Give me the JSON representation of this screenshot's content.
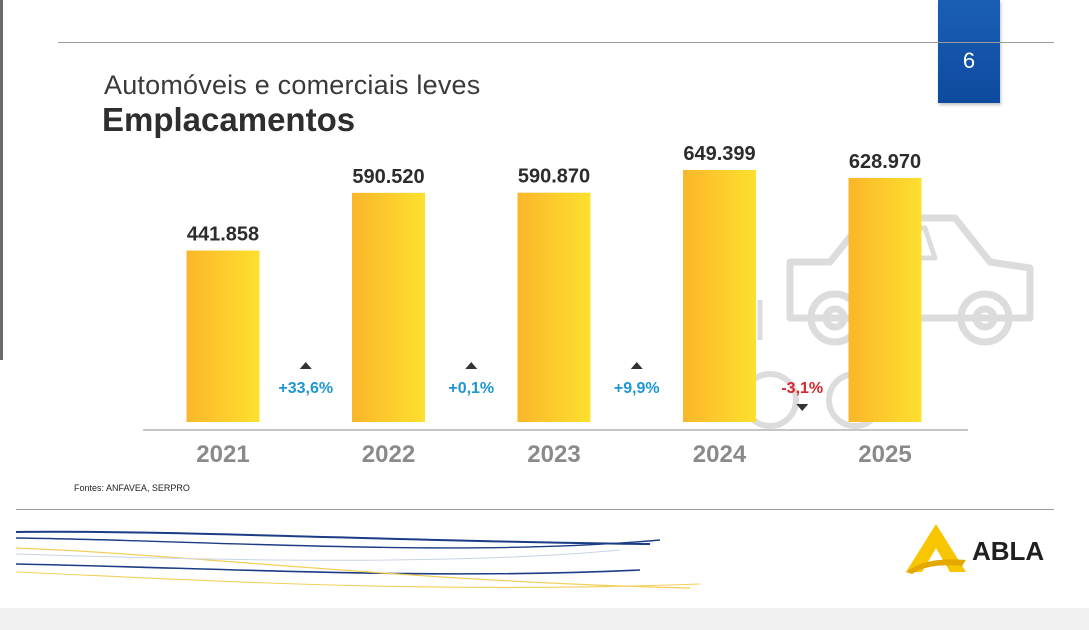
{
  "slide": {
    "page_number": "6",
    "subtitle": "Automóveis e comerciais leves",
    "title": "Emplacamentos",
    "source": "Fontes: ANFAVEA, SERPRO",
    "logo_text": "ABLA"
  },
  "colors": {
    "bar_left": "#fbb62a",
    "bar_right": "#fde02e",
    "positive": "#1e96d2",
    "negative": "#d8262e",
    "badge": "#0d4a9e",
    "logo_yellow": "#f7c600"
  },
  "chart_data": {
    "type": "bar",
    "title": "Emplacamentos",
    "subtitle": "Automóveis e comerciais leves",
    "categories": [
      "2021",
      "2022",
      "2023",
      "2024",
      "2025"
    ],
    "values": [
      441858,
      590520,
      590870,
      649399,
      628970
    ],
    "value_labels": [
      "441.858",
      "590.520",
      "590.870",
      "649.399",
      "628.970"
    ],
    "changes": [
      {
        "label": "+33,6%",
        "direction": "up"
      },
      {
        "label": "+0,1%",
        "direction": "up"
      },
      {
        "label": "+9,9%",
        "direction": "up"
      },
      {
        "label": "-3,1%",
        "direction": "down"
      }
    ],
    "ylim": [
      0,
      700000
    ],
    "xlabel": "",
    "ylabel": "",
    "grid": false,
    "legend": "none"
  }
}
